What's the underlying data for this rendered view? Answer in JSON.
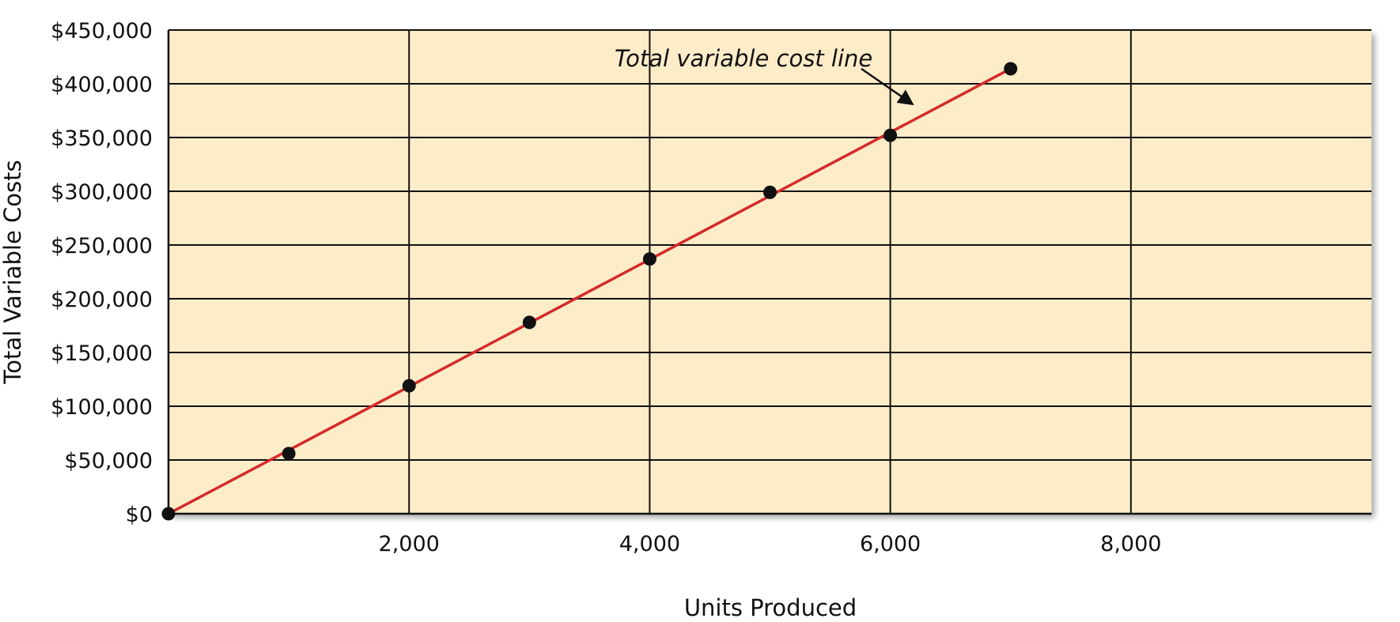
{
  "chart_data": {
    "type": "line",
    "title": "",
    "xlabel": "Units Produced",
    "ylabel": "Total Variable Costs",
    "xlim": [
      0,
      10000
    ],
    "ylim": [
      0,
      450000
    ],
    "grid": true,
    "x_ticks": [
      2000,
      4000,
      6000,
      8000
    ],
    "x_tick_labels": [
      "2,000",
      "4,000",
      "6,000",
      "8,000"
    ],
    "y_ticks": [
      0,
      50000,
      100000,
      150000,
      200000,
      250000,
      300000,
      350000,
      400000,
      450000
    ],
    "y_tick_labels": [
      "$0",
      "$50,000",
      "$100,000",
      "$150,000",
      "$200,000",
      "$250,000",
      "$300,000",
      "$350,000",
      "$400,000",
      "$450,000"
    ],
    "series": [
      {
        "x": [
          0,
          1000,
          2000,
          3000,
          4000,
          5000,
          6000,
          7000
        ],
        "y": [
          0,
          56000,
          119000,
          178000,
          237000,
          299000,
          352000,
          414000
        ],
        "color": "#d42a2a",
        "marker_color": "#111111"
      }
    ],
    "annotations": [
      {
        "text": "Total variable cost line",
        "x": 6200,
        "y": 383000
      }
    ],
    "plot_background": "#fdecc8"
  }
}
